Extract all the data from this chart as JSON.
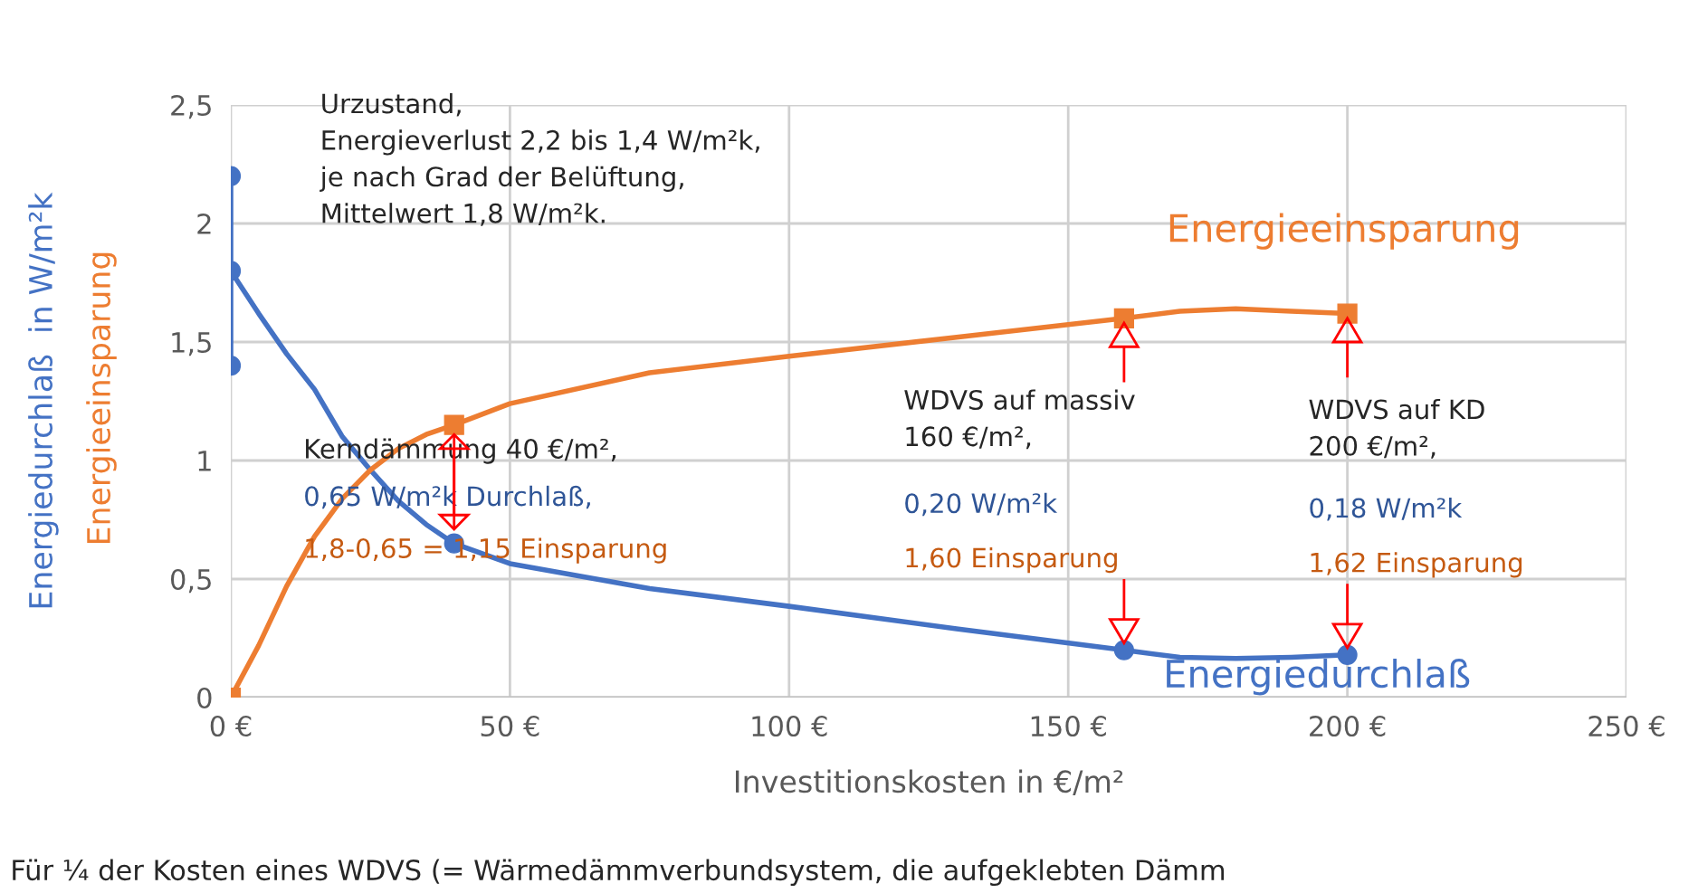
{
  "chart_data": {
    "type": "line",
    "xlabel": "Investitionskosten in €/m²",
    "ylabel": "Energiedurchlaß  in W/m²k",
    "xlim": [
      0,
      250
    ],
    "xticks": [
      {
        "value": 0,
        "label": "0 €"
      },
      {
        "value": 50,
        "label": "50 €"
      },
      {
        "value": 100,
        "label": "100 €"
      },
      {
        "value": 150,
        "label": "150 €"
      },
      {
        "value": 200,
        "label": "200 €"
      },
      {
        "value": 250,
        "label": "250 €"
      }
    ],
    "ylim": [
      0,
      2.5
    ],
    "yticks": [
      0,
      {
        "value": 0.5,
        "label": "0,5"
      },
      1,
      {
        "value": 1.5,
        "label": "1,5"
      },
      2,
      {
        "value": 2.5,
        "label": "2,5"
      }
    ],
    "grid": true,
    "legend": false,
    "line_style": "solid",
    "series": [
      {
        "name": "Energiedurchlaß",
        "color": "#4472c4",
        "x": [
          0,
          0,
          0,
          5,
          10,
          15,
          20,
          25,
          30,
          35,
          40,
          50,
          75,
          100,
          130,
          160,
          170,
          180,
          190,
          200
        ],
        "values": [
          1.4,
          2.2,
          1.8,
          1.62,
          1.45,
          1.3,
          1.1,
          0.96,
          0.83,
          0.73,
          0.65,
          0.565,
          0.46,
          0.385,
          0.29,
          0.2,
          0.17,
          0.165,
          0.17,
          0.18
        ]
      },
      {
        "name": "Energieeinsparung",
        "color": "#ed7d31",
        "x": [
          0,
          5,
          10,
          15,
          20,
          25,
          30,
          35,
          40,
          50,
          75,
          100,
          130,
          160,
          170,
          180,
          190,
          200
        ],
        "values": [
          0,
          0.22,
          0.47,
          0.68,
          0.84,
          0.96,
          1.05,
          1.11,
          1.15,
          1.24,
          1.37,
          1.44,
          1.52,
          1.6,
          1.63,
          1.64,
          1.63,
          1.62
        ]
      },
      {
        "type": "scatter",
        "color": "#4472c4",
        "marker": "circle",
        "x": [
          0,
          0,
          0,
          40,
          160,
          200
        ],
        "values": [
          1.4,
          2.2,
          1.8,
          0.65,
          0.2,
          0.18
        ]
      },
      {
        "type": "scatter",
        "color": "#ed7d31",
        "marker": "square",
        "x": [
          0,
          40,
          160,
          200
        ],
        "values": [
          0,
          1.15,
          1.6,
          1.62
        ]
      }
    ],
    "annotations": [
      "Urzustand,\nEnergieverlust 2,2 bis 1,4 W/m²k,\nje nach Grad der Belüftung,\nMittelwert 1,8 W/m²k.",
      "Kerndämmung 40 €/m²,",
      "0,65 W/m²k Durchlaß,",
      "1,8-0,65 = 1,15 Einsparung",
      "WDVS auf massiv\n160 €/m²,",
      "0,20 W/m²k",
      "1,60 Einsparung",
      "WDVS auf KD\n200 €/m²,",
      "0,18 W/m²k",
      "1,62 Einsparung",
      "Für ¼ der Kosten eines WDVS (= Wärmedämmverbundsystem, die aufgeklebten Dämm"
    ]
  }
}
